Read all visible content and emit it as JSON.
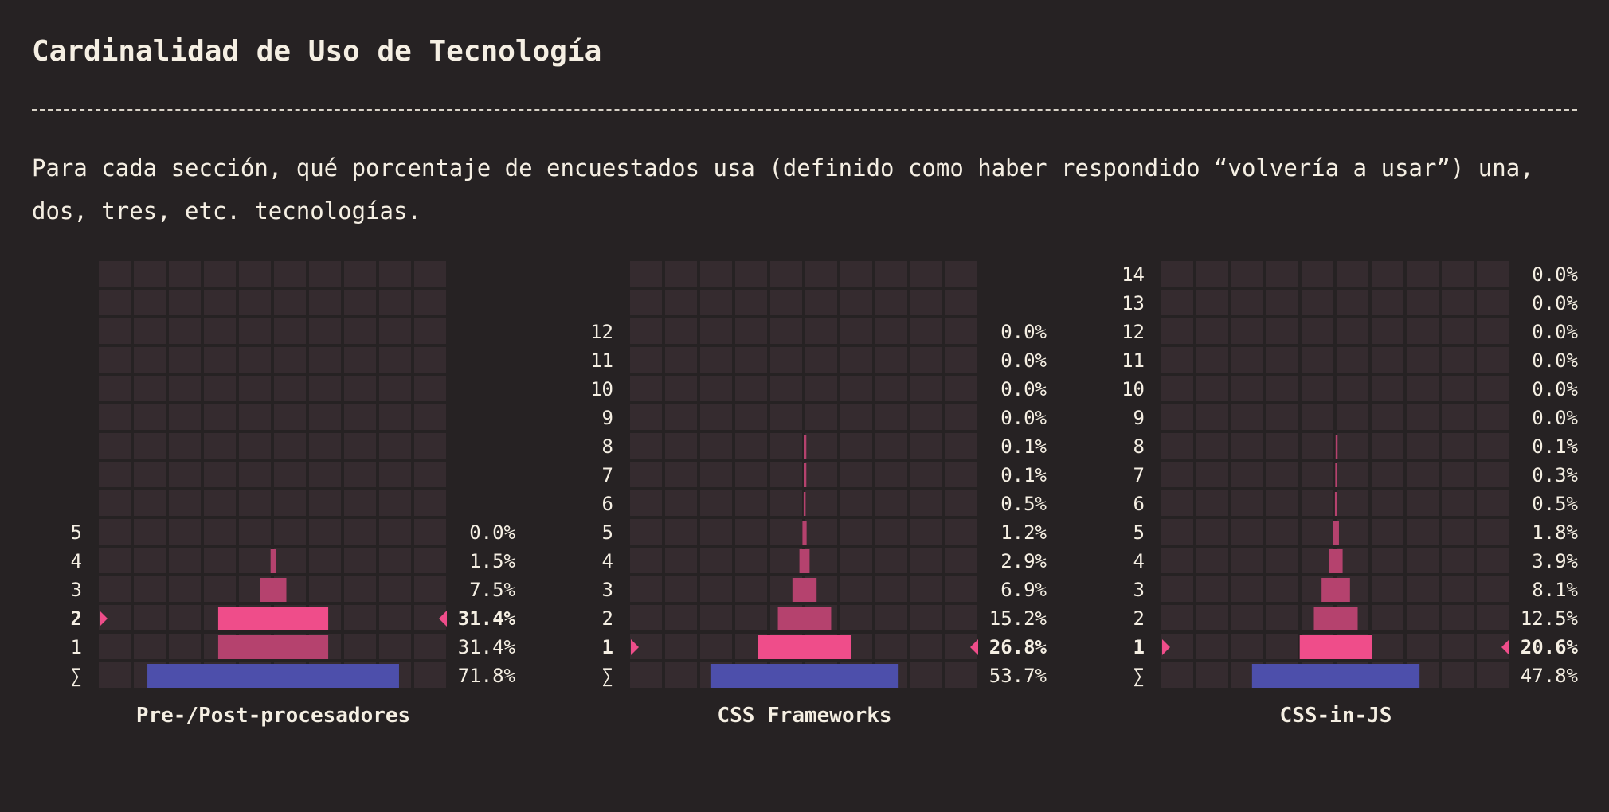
{
  "title": "Cardinalidad de Uso de Tecnología",
  "description": "Para cada sección, qué porcentaje de encuestados usa (definido como haber respondido “volvería a usar”) una, dos, tres, etc. tecnologías.",
  "colors": {
    "background": "#262223",
    "cell": "#352b2f",
    "bar": "#b5426e",
    "highlight": "#ef4d8a",
    "total": "#4d4fab",
    "text": "#f5efe3"
  },
  "chart_data": [
    {
      "type": "bar",
      "title": "Pre-/Post-procesadores",
      "categories": [
        "1",
        "2",
        "3",
        "4",
        "5"
      ],
      "values": [
        31.4,
        31.4,
        7.5,
        1.5,
        0.0
      ],
      "labels": [
        "31.4%",
        "31.4%",
        "7.5%",
        "1.5%",
        "0.0%"
      ],
      "highlight": "2",
      "total_label": "∑",
      "total_value": 71.8,
      "total_text": "71.8%"
    },
    {
      "type": "bar",
      "title": "CSS Frameworks",
      "categories": [
        "1",
        "2",
        "3",
        "4",
        "5",
        "6",
        "7",
        "8",
        "9",
        "10",
        "11",
        "12"
      ],
      "values": [
        26.8,
        15.2,
        6.9,
        2.9,
        1.2,
        0.5,
        0.1,
        0.1,
        0.0,
        0.0,
        0.0,
        0.0
      ],
      "labels": [
        "26.8%",
        "15.2%",
        "6.9%",
        "2.9%",
        "1.2%",
        "0.5%",
        "0.1%",
        "0.1%",
        "0.0%",
        "0.0%",
        "0.0%",
        "0.0%"
      ],
      "highlight": "1",
      "total_label": "∑",
      "total_value": 53.7,
      "total_text": "53.7%"
    },
    {
      "type": "bar",
      "title": "CSS-in-JS",
      "categories": [
        "1",
        "2",
        "3",
        "4",
        "5",
        "6",
        "7",
        "8",
        "9",
        "10",
        "11",
        "12",
        "13",
        "14"
      ],
      "values": [
        20.6,
        12.5,
        8.1,
        3.9,
        1.8,
        0.5,
        0.3,
        0.1,
        0.0,
        0.0,
        0.0,
        0.0,
        0.0,
        0.0
      ],
      "labels": [
        "20.6%",
        "12.5%",
        "8.1%",
        "3.9%",
        "1.8%",
        "0.5%",
        "0.3%",
        "0.1%",
        "0.0%",
        "0.0%",
        "0.0%",
        "0.0%",
        "0.0%",
        "0.0%"
      ],
      "highlight": "1",
      "total_label": "∑",
      "total_value": 47.8,
      "total_text": "47.8%"
    }
  ]
}
